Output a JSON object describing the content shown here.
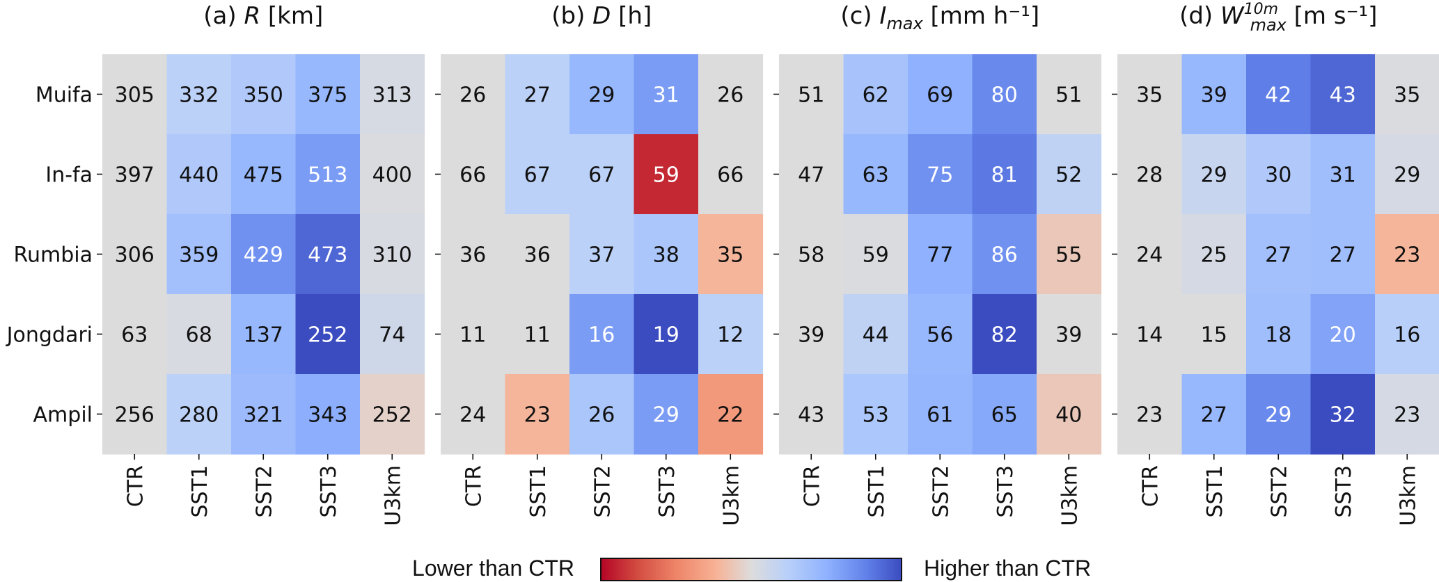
{
  "chart_data": {
    "type": "heatmap",
    "rows": [
      "Muifa",
      "In-fa",
      "Rumbia",
      "Jongdari",
      "Ampil"
    ],
    "columns": [
      "CTR",
      "SST1",
      "SST2",
      "SST3",
      "U3km"
    ],
    "panels": [
      {
        "label": "(a)",
        "var": "R",
        "sub": "",
        "sup": "",
        "unit": "[km]",
        "values": [
          [
            305,
            332,
            350,
            375,
            313
          ],
          [
            397,
            440,
            475,
            513,
            400
          ],
          [
            306,
            359,
            429,
            473,
            310
          ],
          [
            63,
            68,
            137,
            252,
            74
          ],
          [
            256,
            280,
            321,
            343,
            252
          ]
        ],
        "color_level": [
          [
            0,
            0.22,
            0.3,
            0.45,
            0.05
          ],
          [
            0,
            0.3,
            0.45,
            0.62,
            0.02
          ],
          [
            0,
            0.38,
            0.68,
            0.88,
            0.04
          ],
          [
            0,
            0.04,
            0.45,
            1.0,
            0.1
          ],
          [
            0,
            0.22,
            0.42,
            0.52,
            -0.06
          ]
        ],
        "light_text": [
          [
            0,
            0,
            0,
            0,
            0
          ],
          [
            0,
            0,
            0,
            1,
            0
          ],
          [
            0,
            0,
            1,
            1,
            0
          ],
          [
            0,
            0,
            0,
            1,
            0
          ],
          [
            0,
            0,
            0,
            0,
            0
          ]
        ]
      },
      {
        "label": "(b)",
        "var": "D",
        "sub": "",
        "sup": "",
        "unit": "[h]",
        "values": [
          [
            26,
            27,
            29,
            31,
            26
          ],
          [
            66,
            67,
            67,
            59,
            66
          ],
          [
            36,
            36,
            37,
            38,
            35
          ],
          [
            11,
            11,
            16,
            19,
            12
          ],
          [
            24,
            23,
            26,
            29,
            22
          ]
        ],
        "color_level": [
          [
            0,
            0.22,
            0.45,
            0.62,
            0
          ],
          [
            0,
            0.22,
            0.22,
            -0.88,
            0
          ],
          [
            0,
            0,
            0.22,
            0.33,
            -0.22
          ],
          [
            0,
            0,
            0.62,
            1.0,
            0.22
          ],
          [
            0,
            -0.22,
            0.33,
            0.62,
            -0.38
          ]
        ],
        "light_text": [
          [
            0,
            0,
            0,
            1,
            0
          ],
          [
            0,
            0,
            0,
            1,
            0
          ],
          [
            0,
            0,
            0,
            0,
            0
          ],
          [
            0,
            0,
            1,
            1,
            0
          ],
          [
            0,
            0,
            0,
            1,
            0
          ]
        ]
      },
      {
        "label": "(c)",
        "var": "I",
        "sub": "max",
        "sup": "",
        "unit": "[mm h⁻¹]",
        "values": [
          [
            51,
            62,
            69,
            80,
            51
          ],
          [
            47,
            63,
            75,
            81,
            52
          ],
          [
            58,
            59,
            77,
            86,
            55
          ],
          [
            39,
            44,
            56,
            82,
            39
          ],
          [
            43,
            53,
            61,
            65,
            40
          ]
        ],
        "color_level": [
          [
            0,
            0.35,
            0.5,
            0.72,
            0
          ],
          [
            0,
            0.45,
            0.68,
            0.8,
            0.2
          ],
          [
            0,
            0.02,
            0.5,
            0.68,
            -0.12
          ],
          [
            0,
            0.2,
            0.45,
            1.0,
            0
          ],
          [
            0,
            0.32,
            0.47,
            0.55,
            -0.12
          ]
        ],
        "light_text": [
          [
            0,
            0,
            0,
            1,
            0
          ],
          [
            0,
            0,
            1,
            1,
            0
          ],
          [
            0,
            0,
            0,
            1,
            0
          ],
          [
            0,
            0,
            0,
            1,
            0
          ],
          [
            0,
            0,
            0,
            0,
            0
          ]
        ]
      },
      {
        "label": "(d)",
        "var": "W",
        "sub": "max",
        "sup": "10m",
        "unit": "[m s⁻¹]",
        "values": [
          [
            35,
            39,
            42,
            43,
            35
          ],
          [
            28,
            29,
            30,
            31,
            29
          ],
          [
            24,
            25,
            27,
            27,
            23
          ],
          [
            14,
            15,
            18,
            20,
            16
          ],
          [
            23,
            27,
            29,
            32,
            23
          ]
        ],
        "color_level": [
          [
            0,
            0.45,
            0.78,
            0.88,
            0.02
          ],
          [
            0,
            0.15,
            0.3,
            0.4,
            0.06
          ],
          [
            0,
            0.06,
            0.38,
            0.4,
            -0.22
          ],
          [
            0,
            0.0,
            0.4,
            0.58,
            0.25
          ],
          [
            0,
            0.45,
            0.72,
            1.0,
            0.06
          ]
        ],
        "light_text": [
          [
            0,
            0,
            1,
            1,
            0
          ],
          [
            0,
            0,
            0,
            0,
            0
          ],
          [
            0,
            0,
            0,
            0,
            0
          ],
          [
            0,
            0,
            0,
            1,
            0
          ],
          [
            0,
            0,
            1,
            1,
            0
          ]
        ]
      }
    ],
    "colormap": "coolwarm (reversed: red = lower, blue = higher)",
    "legend": {
      "left_label": "Lower than CTR",
      "right_label": "Higher than CTR",
      "placement": "bottom-center"
    },
    "colors": {
      "low": "#b40426",
      "mid": "#dddddd",
      "high": "#3b4cc0"
    }
  }
}
